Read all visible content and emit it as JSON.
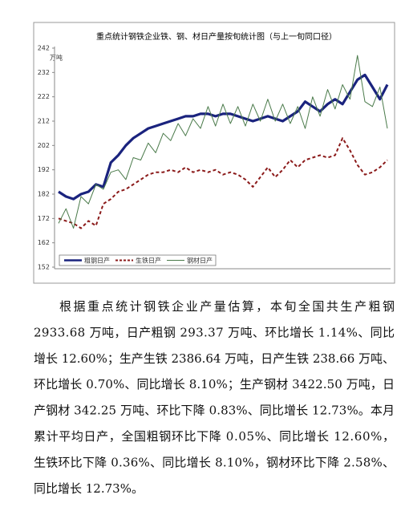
{
  "chart_data": {
    "type": "line",
    "title": "重点统计钢铁企业铁、钢、材日产量按旬统计图（与上一旬同口径）",
    "y_label": "万吨",
    "ylim": [
      152,
      242
    ],
    "yticks": [
      152,
      162,
      172,
      182,
      192,
      202,
      212,
      222,
      232,
      242
    ],
    "categories": [
      null,
      null,
      null,
      null,
      null,
      null,
      null,
      null,
      null,
      null,
      null,
      null,
      null,
      null,
      null,
      null,
      null,
      null,
      null,
      null,
      null,
      null,
      null,
      null,
      null,
      null,
      null,
      null,
      null,
      null,
      null,
      null,
      null,
      null,
      null,
      null,
      null,
      null,
      null,
      null,
      null,
      null,
      null,
      null,
      null
    ],
    "series": [
      {
        "name": "粗钢日产",
        "color": "#1a237e",
        "width": 3.2,
        "dash": "solid",
        "values": [
          183,
          181,
          180,
          182,
          183,
          186,
          185,
          195,
          198,
          202,
          205,
          207,
          209,
          210,
          211,
          212,
          213,
          214,
          214,
          215,
          215,
          214,
          215,
          215,
          214,
          213,
          212,
          213,
          214,
          213,
          212,
          214,
          216,
          220,
          218,
          216,
          219,
          221,
          219,
          224,
          229,
          231,
          226,
          221,
          227
        ]
      },
      {
        "name": "生铁日产",
        "color": "#8b1a1a",
        "width": 2,
        "dash": "dashed",
        "values": [
          172,
          171,
          170,
          168,
          171,
          169,
          178,
          180,
          183,
          184,
          186,
          188,
          190,
          191,
          191,
          192,
          191,
          193,
          191,
          192,
          191,
          192,
          190,
          191,
          190,
          188,
          185,
          189,
          193,
          189,
          192,
          196,
          193,
          196,
          197,
          198,
          197,
          198,
          205,
          200,
          194,
          190,
          191,
          193,
          196
        ]
      },
      {
        "name": "钢材日产",
        "color": "#4a7a4a",
        "width": 1,
        "dash": "solid",
        "values": [
          170,
          176,
          168,
          181,
          178,
          186,
          184,
          191,
          192,
          188,
          197,
          196,
          203,
          199,
          207,
          204,
          211,
          206,
          213,
          209,
          218,
          210,
          219,
          211,
          218,
          210,
          219,
          212,
          221,
          212,
          219,
          211,
          218,
          209,
          222,
          214,
          225,
          217,
          227,
          221,
          239,
          220,
          218,
          226,
          209
        ]
      }
    ]
  },
  "paragraph": [
    "根据重点统计钢铁企业产量估算，本旬全国共生产粗钢",
    "2933.68 万吨，日产粗钢 293.37 万吨、环比增长 1.14%、同比",
    "增长 12.60%；生产生铁 2386.64 万吨，日产生铁 238.66 万吨、",
    "环比增长 0.70%、同比增长 8.10%；生产钢材 3422.50 万吨，日",
    "产钢材 342.25 万吨、环比下降 0.83%、同比增长 12.73%。本月",
    "累计平均日产，全国粗钢环比下降 0.05%、同比增长 12.60%，",
    "生铁环比下降 0.36%、同比增长 8.10%，钢材环比下降 2.58%、",
    "同比增长 12.73%。"
  ]
}
